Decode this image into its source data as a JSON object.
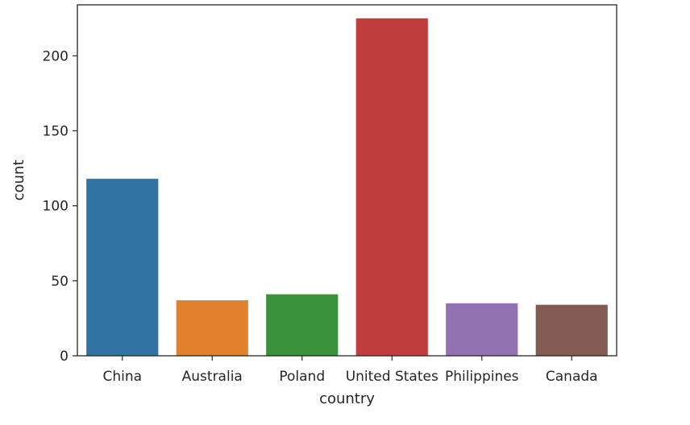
{
  "chart_data": {
    "type": "bar",
    "categories": [
      "China",
      "Australia",
      "Poland",
      "United States",
      "Philippines",
      "Canada"
    ],
    "values": [
      118,
      37,
      41,
      225,
      35,
      34
    ],
    "colors": [
      "#3274a1",
      "#e1812c",
      "#3a923a",
      "#c03d3e",
      "#9372b2",
      "#845b53"
    ],
    "xlabel": "country",
    "ylabel": "count",
    "ylim": [
      0,
      234
    ],
    "yticks": [
      0,
      50,
      100,
      150,
      200
    ],
    "ytick_labels": [
      "0",
      "50",
      "100",
      "150",
      "200"
    ],
    "grid": false,
    "legend": "none"
  }
}
